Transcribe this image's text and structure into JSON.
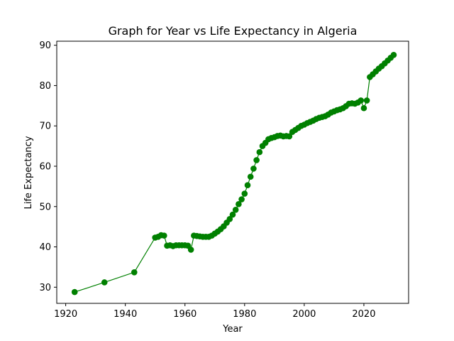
{
  "chart_data": {
    "type": "line",
    "title": "Graph for Year vs Life Expectancy in Algeria",
    "xlabel": "Year",
    "ylabel": "Life Expectancy",
    "xlim": [
      1917,
      2035
    ],
    "ylim": [
      26,
      91
    ],
    "xticks": [
      1920,
      1940,
      1960,
      1980,
      2000,
      2020
    ],
    "yticks": [
      30,
      40,
      50,
      60,
      70,
      80,
      90
    ],
    "grid": false,
    "color": "#008000",
    "marker": "circle",
    "series": [
      {
        "x": [
          1923,
          1933,
          1943,
          1950,
          1951,
          1952,
          1953,
          1954,
          1955,
          1956,
          1957,
          1958,
          1959,
          1960,
          1961,
          1962,
          1963,
          1964,
          1965,
          1966,
          1967,
          1968,
          1969,
          1970,
          1971,
          1972,
          1973,
          1974,
          1975,
          1976,
          1977,
          1978,
          1979,
          1980,
          1981,
          1982,
          1983,
          1984,
          1985,
          1986,
          1987,
          1988,
          1989,
          1990,
          1991,
          1992,
          1993,
          1994,
          1995,
          1996,
          1997,
          1998,
          1999,
          2000,
          2001,
          2002,
          2003,
          2004,
          2005,
          2006,
          2007,
          2008,
          2009,
          2010,
          2011,
          2012,
          2013,
          2014,
          2015,
          2016,
          2017,
          2018,
          2019,
          2020,
          2021,
          2022,
          2023,
          2024,
          2025,
          2026,
          2027,
          2028,
          2029,
          2030
        ],
        "y": [
          28.8,
          31.2,
          33.7,
          42.3,
          42.5,
          42.9,
          42.8,
          40.3,
          40.4,
          40.2,
          40.4,
          40.4,
          40.4,
          40.4,
          40.3,
          39.3,
          42.8,
          42.7,
          42.6,
          42.5,
          42.5,
          42.5,
          42.8,
          43.3,
          43.8,
          44.4,
          45.1,
          46.0,
          46.9,
          48.0,
          49.2,
          50.6,
          51.8,
          53.2,
          55.3,
          57.4,
          59.4,
          61.5,
          63.5,
          65.0,
          65.8,
          66.7,
          67.0,
          67.2,
          67.5,
          67.6,
          67.4,
          67.5,
          67.4,
          68.5,
          69.0,
          69.5,
          70.0,
          70.3,
          70.7,
          71.0,
          71.3,
          71.7,
          72.0,
          72.2,
          72.4,
          72.8,
          73.3,
          73.6,
          73.9,
          74.1,
          74.4,
          74.9,
          75.5,
          75.6,
          75.5,
          75.8,
          76.3,
          74.4,
          76.3,
          82.1,
          82.8,
          83.5,
          84.2,
          84.8,
          85.5,
          86.2,
          86.9,
          87.6
        ]
      }
    ]
  }
}
